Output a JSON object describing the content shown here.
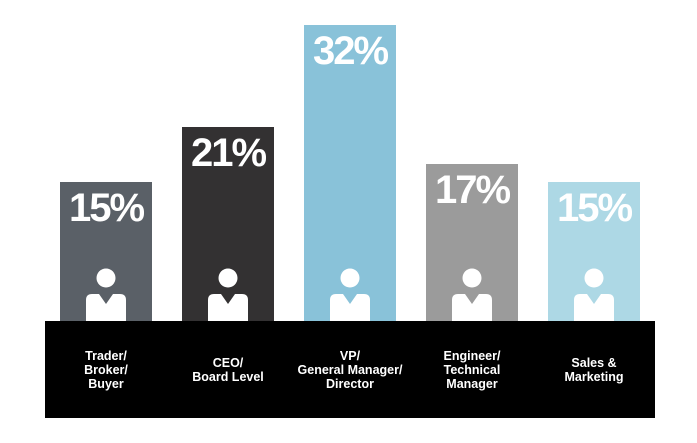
{
  "chart_data": {
    "type": "bar",
    "title": "",
    "xlabel": "",
    "ylabel": "",
    "ylim": [
      0,
      32
    ],
    "grid": false,
    "unit": "%",
    "categories": [
      "Trader/\nBroker/\nBuyer",
      "CEO/\nBoard Level",
      "VP/\nGeneral Manager/\nDirector",
      "Engineer/\nTechnical\nManager",
      "Sales &\nMarketing"
    ],
    "values": [
      15,
      21,
      32,
      17,
      15
    ],
    "labels": [
      "15%",
      "21%",
      "32%",
      "17%",
      "15%"
    ],
    "colors": [
      "#5a6067",
      "#333132",
      "#89c2d9",
      "#9b9b9b",
      "#add8e5"
    ],
    "icon": "person-icon",
    "band_color": "#000000"
  }
}
